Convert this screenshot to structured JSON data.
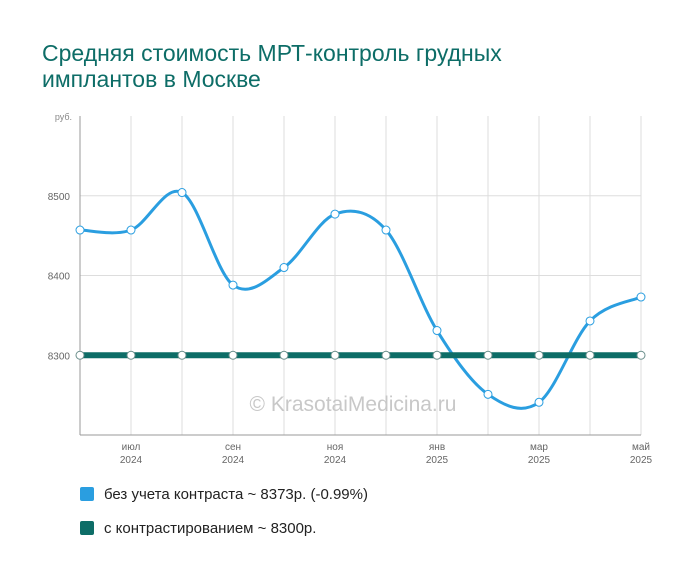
{
  "title": "Средняя стоимость МРТ-контроль грудных имплантов в Москве",
  "watermark": "© KrasotaiMedicina.ru",
  "chart_data": {
    "type": "line",
    "title": "Средняя стоимость МРТ-контроль грудных имплантов в Москве",
    "y_unit": "руб.",
    "ylim": [
      8200,
      8600
    ],
    "yticks": [
      8300,
      8400,
      8500
    ],
    "x": [
      "2024-06",
      "2024-07",
      "2024-08",
      "2024-09",
      "2024-10",
      "2024-11",
      "2024-12",
      "2025-01",
      "2025-02",
      "2025-03",
      "2025-04",
      "2025-05"
    ],
    "x_tick_labels": [
      {
        "month": "июл",
        "year": "2024"
      },
      {
        "month": "сен",
        "year": "2024"
      },
      {
        "month": "ноя",
        "year": "2024"
      },
      {
        "month": "янв",
        "year": "2025"
      },
      {
        "month": "мар",
        "year": "2025"
      },
      {
        "month": "май",
        "year": "2025"
      }
    ],
    "grid": true,
    "legend_position": "bottom",
    "series": [
      {
        "name": "без учета контраста ~ 8373р. (-0.99%)",
        "color": "#2a9ee0",
        "values": [
          8457,
          8457,
          8504,
          8388,
          8410,
          8477,
          8457,
          8331,
          8251,
          8241,
          8343,
          8373
        ]
      },
      {
        "name": "с контрастированием ~ 8300р.",
        "color": "#0d6d67",
        "values": [
          8300,
          8300,
          8300,
          8300,
          8300,
          8300,
          8300,
          8300,
          8300,
          8300,
          8300,
          8300
        ]
      }
    ]
  }
}
